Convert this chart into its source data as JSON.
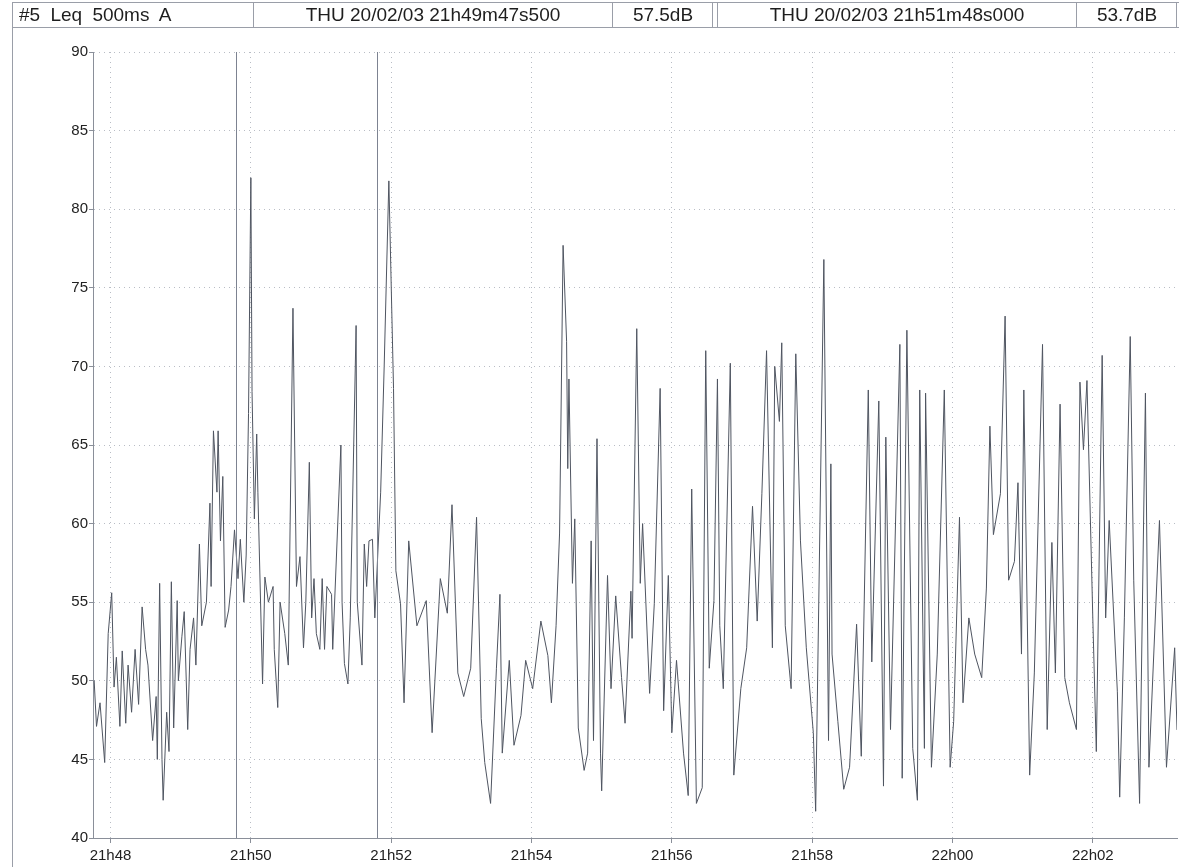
{
  "chart_data": {
    "type": "line",
    "title": "#5 Leq 500ms A",
    "annotations": [
      "THU 20/02/03 21h49m47s500",
      "57.5dB",
      "THU 20/02/03 21h51m48s000",
      "53.7dB"
    ],
    "x": [
      "--02-20T21:47:46",
      "--02-20T21:47:48",
      "--02-20T21:47:51",
      "--02-20T21:47:55",
      "--02-20T21:47:58",
      "--02-20T21:48:01",
      "--02-20T21:48:03",
      "--02-20T21:48:05",
      "--02-20T21:48:08",
      "--02-20T21:48:10",
      "--02-20T21:48:13",
      "--02-20T21:48:15",
      "--02-20T21:48:18",
      "--02-20T21:48:21",
      "--02-20T21:48:24",
      "--02-20T21:48:27",
      "--02-20T21:48:30",
      "--02-20T21:48:32",
      "--02-20T21:48:36",
      "--02-20T21:48:39",
      "--02-20T21:48:40",
      "--02-20T21:48:42",
      "--02-20T21:48:44",
      "--02-20T21:48:45",
      "--02-20T21:48:48",
      "--02-20T21:48:50",
      "--02-20T21:48:52",
      "--02-20T21:48:54",
      "--02-20T21:48:57",
      "--02-20T21:48:58",
      "--02-20T21:49:01",
      "--02-20T21:49:03",
      "--02-20T21:49:06",
      "--02-20T21:49:08",
      "--02-20T21:49:11",
      "--02-20T21:49:13",
      "--02-20T21:49:16",
      "--02-20T21:49:18",
      "--02-20T21:49:22",
      "--02-20T21:49:25",
      "--02-20T21:49:26",
      "--02-20T21:49:28",
      "--02-20T21:49:31",
      "--02-20T21:49:32",
      "--02-20T21:49:34",
      "--02-20T21:49:36",
      "--02-20T21:49:38",
      "--02-20T21:49:41",
      "--02-20T21:49:43",
      "--02-20T21:49:46",
      "--02-20T21:49:49",
      "--02-20T21:49:51",
      "--02-20T21:49:54",
      "--02-20T21:49:56",
      "--02-20T21:49:58",
      "--02-20T21:50:00",
      "--02-20T21:50:01",
      "--02-20T21:50:03",
      "--02-20T21:50:05",
      "--02-20T21:50:06",
      "--02-20T21:50:10",
      "--02-20T21:50:12",
      "--02-20T21:50:15",
      "--02-20T21:50:19",
      "--02-20T21:50:20",
      "--02-20T21:50:23",
      "--02-20T21:50:25",
      "--02-20T21:50:29",
      "--02-20T21:50:32",
      "--02-20T21:50:36",
      "--02-20T21:50:39",
      "--02-20T21:50:42",
      "--02-20T21:50:45",
      "--02-20T21:50:47",
      "--02-20T21:50:50",
      "--02-20T21:50:52",
      "--02-20T21:50:54",
      "--02-20T21:50:56",
      "--02-20T21:50:59",
      "--02-20T21:51:01",
      "--02-20T21:51:03",
      "--02-20T21:51:05",
      "--02-20T21:51:09",
      "--02-20T21:51:10",
      "--02-20T21:51:17",
      "--02-20T21:51:18",
      "--02-20T21:51:20",
      "--02-20T21:51:23",
      "--02-20T21:51:25",
      "--02-20T21:51:30",
      "--02-20T21:51:31",
      "--02-20T21:51:35",
      "--02-20T21:51:37",
      "--02-20T21:51:39",
      "--02-20T21:51:41",
      "--02-20T21:51:44",
      "--02-20T21:51:46",
      "--02-20T21:51:51",
      "--02-20T21:51:54",
      "--02-20T21:51:58",
      "--02-20T21:52:02",
      "--02-20T21:52:04",
      "--02-20T21:52:08",
      "--02-20T21:52:11",
      "--02-20T21:52:15",
      "--02-20T21:52:22",
      "--02-20T21:52:30",
      "--02-20T21:52:35",
      "--02-20T21:52:42",
      "--02-20T21:52:48",
      "--02-20T21:52:52",
      "--02-20T21:52:57",
      "--02-20T21:53:02",
      "--02-20T21:53:08",
      "--02-20T21:53:13",
      "--02-20T21:53:17",
      "--02-20T21:53:20",
      "--02-20T21:53:25",
      "--02-20T21:53:30",
      "--02-20T21:53:33",
      "--02-20T21:53:35",
      "--02-20T21:53:41",
      "--02-20T21:53:45",
      "--02-20T21:53:51",
      "--02-20T21:53:55",
      "--02-20T21:54:01",
      "--02-20T21:54:08",
      "--02-20T21:54:14",
      "--02-20T21:54:17",
      "--02-20T21:54:21",
      "--02-20T21:54:24",
      "--02-20T21:54:27",
      "--02-20T21:54:30",
      "--02-20T21:54:31",
      "--02-20T21:54:32",
      "--02-20T21:54:35",
      "--02-20T21:54:37",
      "--02-20T21:54:40",
      "--02-20T21:54:45",
      "--02-20T21:54:48",
      "--02-20T21:54:51",
      "--02-20T21:54:53",
      "--02-20T21:54:56",
      "--02-20T21:54:59",
      "--02-20T21:55:00",
      "--02-20T21:55:05",
      "--02-20T21:55:08",
      "--02-20T21:55:12",
      "--02-20T21:55:17",
      "--02-20T21:55:20",
      "--02-20T21:55:25",
      "--02-20T21:55:26",
      "--02-20T21:55:30",
      "--02-20T21:55:33",
      "--02-20T21:55:35",
      "--02-20T21:55:41",
      "--02-20T21:55:45",
      "--02-20T21:55:50",
      "--02-20T21:55:53",
      "--02-20T21:55:57",
      "--02-20T21:56:00",
      "--02-20T21:56:04",
      "--02-20T21:56:10",
      "--02-20T21:56:14",
      "--02-20T21:56:17",
      "--02-20T21:56:21",
      "--02-20T21:56:26",
      "--02-20T21:56:29",
      "--02-20T21:56:32",
      "--02-20T21:56:36",
      "--02-20T21:56:39",
      "--02-20T21:56:41",
      "--02-20T21:56:44",
      "--02-20T21:56:50",
      "--02-20T21:56:53",
      "--02-20T21:56:59",
      "--02-20T21:57:04",
      "--02-20T21:57:09",
      "--02-20T21:57:13",
      "--02-20T21:57:17",
      "--02-20T21:57:21",
      "--02-20T21:57:26",
      "--02-20T21:57:28",
      "--02-20T21:57:32",
      "--02-20T21:57:34",
      "--02-20T21:57:37",
      "--02-20T21:57:42",
      "--02-20T21:57:46",
      "--02-20T21:57:50",
      "--02-20T21:57:55",
      "--02-20T21:58:01",
      "--02-20T21:58:03",
      "--02-20T21:58:10",
      "--02-20T21:58:14",
      "--02-20T21:58:16",
      "--02-20T21:58:17",
      "--02-20T21:58:22",
      "--02-20T21:58:27",
      "--02-20T21:58:32",
      "--02-20T21:58:38",
      "--02-20T21:58:42",
      "--02-20T21:58:48",
      "--02-20T21:58:51",
      "--02-20T21:58:57",
      "--02-20T21:59:01",
      "--02-20T21:59:03",
      "--02-20T21:59:07",
      "--02-20T21:59:15",
      "--02-20T21:59:17",
      "--02-20T21:59:21",
      "--02-20T21:59:26",
      "--02-20T21:59:30",
      "--02-20T21:59:32",
      "--02-20T21:59:36",
      "--02-20T21:59:37",
      "--02-20T21:59:42",
      "--02-20T21:59:47",
      "--02-20T21:59:53",
      "--02-20T21:59:58",
      "--02-20T22:00:01",
      "--02-20T22:00:06",
      "--02-20T22:00:09",
      "--02-20T22:00:14",
      "--02-20T22:00:19",
      "--02-20T22:00:25",
      "--02-20T22:00:29",
      "--02-20T22:00:32",
      "--02-20T22:00:35",
      "--02-20T22:00:41",
      "--02-20T22:00:45",
      "--02-20T22:00:48",
      "--02-20T22:00:53",
      "--02-20T22:00:56",
      "--02-20T22:00:59",
      "--02-20T22:01:01",
      "--02-20T22:01:06",
      "--02-20T22:01:10",
      "--02-20T22:01:17",
      "--02-20T22:01:21",
      "--02-20T22:01:25",
      "--02-20T22:01:28",
      "--02-20T22:01:32",
      "--02-20T22:01:36",
      "--02-20T22:01:40",
      "--02-20T22:01:46",
      "--02-20T22:01:49",
      "--02-20T22:01:52",
      "--02-20T22:01:55",
      "--02-20T22:02:00",
      "--02-20T22:02:03",
      "--02-20T22:02:08",
      "--02-20T22:02:11",
      "--02-20T22:02:14",
      "--02-20T22:02:21",
      "--02-20T22:02:23",
      "--02-20T22:02:27",
      "--02-20T22:02:32",
      "--02-20T22:02:35",
      "--02-20T22:02:40",
      "--02-20T22:02:45",
      "--02-20T22:02:48",
      "--02-20T22:02:57",
      "--02-20T22:03:03",
      "--02-20T22:03:10",
      "--02-20T22:03:12"
    ],
    "values": [
      50.0,
      47.1,
      48.6,
      44.8,
      53.0,
      55.6,
      49.6,
      51.5,
      47.1,
      51.9,
      47.3,
      51.0,
      48.0,
      52.0,
      48.5,
      54.7,
      52.0,
      51.0,
      46.2,
      49.0,
      45.0,
      56.2,
      45.0,
      42.4,
      48.0,
      45.5,
      56.3,
      47.0,
      55.1,
      50.0,
      52.8,
      54.4,
      46.9,
      52.0,
      54.0,
      51.0,
      58.7,
      53.5,
      55.0,
      61.3,
      56.0,
      65.9,
      62.0,
      65.9,
      58.9,
      63.0,
      53.4,
      54.5,
      56.0,
      59.6,
      56.5,
      59.0,
      55.0,
      58.0,
      67.0,
      82.0,
      68.4,
      60.3,
      65.7,
      62.0,
      49.8,
      56.6,
      55.0,
      56.0,
      52.0,
      48.3,
      55.0,
      53.0,
      51.0,
      73.7,
      56.0,
      57.9,
      52.1,
      55.0,
      63.9,
      54.0,
      56.5,
      53.0,
      52.0,
      56.5,
      52.0,
      56.0,
      55.5,
      52.0,
      65.0,
      55.0,
      51.1,
      49.8,
      54.0,
      72.6,
      55.0,
      51.0,
      58.7,
      56.0,
      58.9,
      59.0,
      54.0,
      62.0,
      70.0,
      81.8,
      68.6,
      57.0,
      54.9,
      48.6,
      58.9,
      53.5,
      55.1,
      46.7,
      56.5,
      54.3,
      61.2,
      50.5,
      49.0,
      50.8,
      60.4,
      47.6,
      44.8,
      42.2,
      50.8,
      55.5,
      45.4,
      51.3,
      45.9,
      47.8,
      51.3,
      49.5,
      53.8,
      51.6,
      48.6,
      53.5,
      59.4,
      77.7,
      71.6,
      63.5,
      69.2,
      56.2,
      60.3,
      47.0,
      44.3,
      45.4,
      58.9,
      46.2,
      65.4,
      45.4,
      43.0,
      56.7,
      49.5,
      55.4,
      50.2,
      47.3,
      55.7,
      52.7,
      72.4,
      56.2,
      60.0,
      49.2,
      54.9,
      68.6,
      48.1,
      56.7,
      46.7,
      51.3,
      45.4,
      42.7,
      62.2,
      42.2,
      43.2,
      71.0,
      50.8,
      55.1,
      69.2,
      53.5,
      49.5,
      70.2,
      44.0,
      49.5,
      52.1,
      61.1,
      53.8,
      61.9,
      71.0,
      52.1,
      70.0,
      66.5,
      71.5,
      53.5,
      49.5,
      70.8,
      58.9,
      52.1,
      46.7,
      41.7,
      76.8,
      46.2,
      63.8,
      51.7,
      47.4,
      43.1,
      44.5,
      53.6,
      45.2,
      68.5,
      51.2,
      67.8,
      43.3,
      65.5,
      46.9,
      71.4,
      43.8,
      72.3,
      45.7,
      42.4,
      68.5,
      45.7,
      68.3,
      44.5,
      51.7,
      68.5,
      44.5,
      47.4,
      60.4,
      48.6,
      54.0,
      51.7,
      50.2,
      55.9,
      66.2,
      59.3,
      61.9,
      73.2,
      56.4,
      57.6,
      62.6,
      51.7,
      68.5,
      44.0,
      50.5,
      71.4,
      46.9,
      58.8,
      50.5,
      67.6,
      50.2,
      48.6,
      46.9,
      69.0,
      64.7,
      69.1,
      54.0,
      45.5,
      70.7,
      54.0,
      60.2,
      49.3,
      42.6,
      54.0,
      71.9,
      56.4,
      42.2,
      68.3,
      44.5,
      60.2,
      44.5,
      52.1,
      46.9
    ],
    "color": "#4f5561",
    "line_style": "solid",
    "xlim": [
      "--02-20T21:47:45",
      "--02-20T22:03:12"
    ],
    "ylim": [
      40,
      90
    ],
    "xticks": [
      {
        "value": "--02-20T21:48",
        "label": "21h48"
      },
      {
        "value": "--02-20T21:50",
        "label": "21h50"
      },
      {
        "value": "--02-20T21:52",
        "label": "21h52"
      },
      {
        "value": "--02-20T21:54",
        "label": "21h54"
      },
      {
        "value": "--02-20T21:56",
        "label": "21h56"
      },
      {
        "value": "--02-20T21:58",
        "label": "21h58"
      },
      {
        "value": "--02-20T22:00",
        "label": "22h00"
      },
      {
        "value": "--02-20T22:02",
        "label": "22h02"
      }
    ],
    "yticks": [
      40,
      45,
      50,
      55,
      60,
      65,
      70,
      75,
      80,
      85,
      90
    ],
    "grid": true,
    "ref_lines": [
      {
        "axis": "x",
        "value": "--02-20T21:49:47.500",
        "color": "#7d8391"
      },
      {
        "axis": "x",
        "value": "--02-20T21:51:48",
        "color": "#7d8391"
      }
    ]
  }
}
